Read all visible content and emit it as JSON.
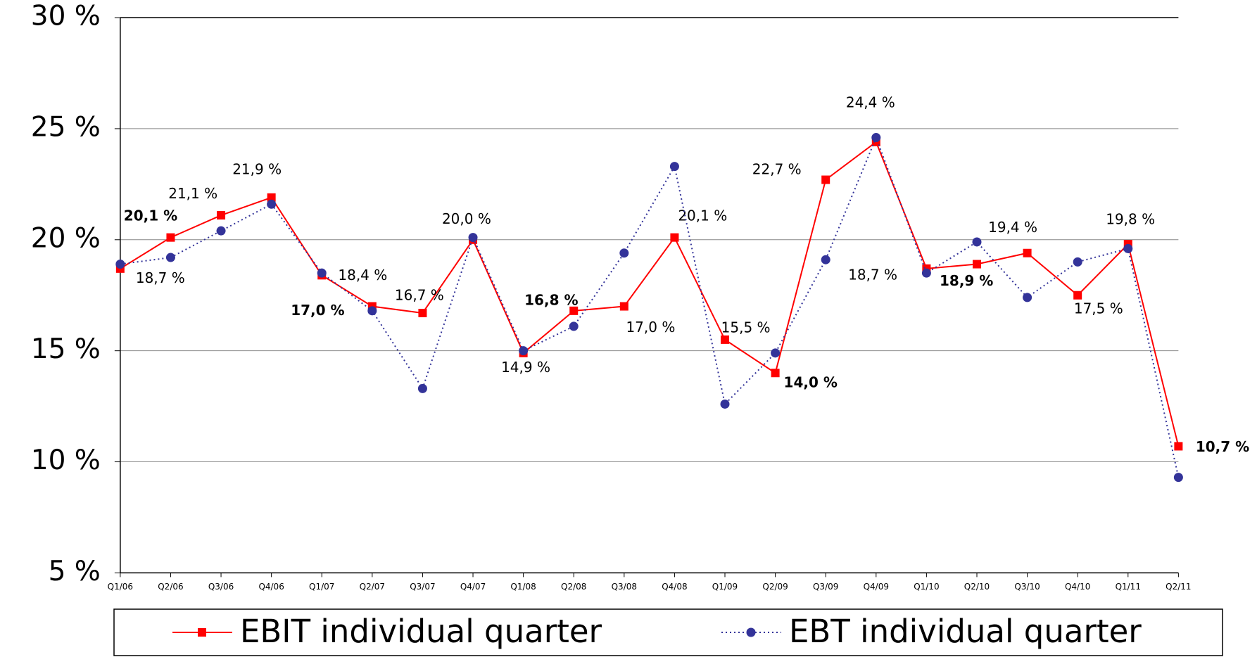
{
  "chart_data": {
    "type": "line",
    "categories": [
      "Q1/06",
      "Q2/06",
      "Q3/06",
      "Q4/06",
      "Q1/07",
      "Q2/07",
      "Q3/07",
      "Q4/07",
      "Q1/08",
      "Q2/08",
      "Q3/08",
      "Q4/08",
      "Q1/09",
      "Q2/09",
      "Q3/09",
      "Q4/09",
      "Q1/10",
      "Q2/10",
      "Q3/10",
      "Q4/10",
      "Q1/11",
      "Q2/11"
    ],
    "series": [
      {
        "name": "EBIT individual quarter",
        "color": "#ff0000",
        "line_style": "solid",
        "marker": "square",
        "values": [
          18.7,
          20.1,
          21.1,
          21.9,
          18.4,
          17.0,
          16.7,
          20.0,
          14.9,
          16.8,
          17.0,
          20.1,
          15.5,
          14.0,
          22.7,
          24.4,
          18.7,
          18.9,
          19.4,
          17.5,
          19.8,
          10.7
        ],
        "value_labels": [
          "18,7 %",
          "20,1 %",
          "21,1 %",
          "21,9 %",
          "18,4 %",
          "17,0 %",
          "16,7 %",
          "20,0 %",
          "14,9 %",
          "16,8 %",
          "17,0 %",
          "20,1 %",
          "15,5 %",
          "14,0 %",
          "22,7 %",
          "24,4 %",
          "18,7 %",
          "18,9 %",
          "19,4 %",
          "17,5 %",
          "19,8 %",
          "10,7 %"
        ],
        "label_bold": [
          false,
          true,
          false,
          false,
          false,
          true,
          false,
          false,
          false,
          true,
          false,
          false,
          false,
          true,
          false,
          false,
          false,
          true,
          false,
          false,
          false,
          true
        ]
      },
      {
        "name": "EBT individual quarter",
        "color": "#333399",
        "line_style": "dotted",
        "marker": "circle",
        "values": [
          18.9,
          19.2,
          20.4,
          21.6,
          18.5,
          16.8,
          13.3,
          20.1,
          15.0,
          16.1,
          19.4,
          23.3,
          12.6,
          14.9,
          19.1,
          24.6,
          18.5,
          19.9,
          17.4,
          19.0,
          19.6,
          9.3
        ]
      }
    ],
    "ylim": [
      5,
      30
    ],
    "yticks": [
      {
        "value": 5,
        "label": "5 %"
      },
      {
        "value": 10,
        "label": "10 %"
      },
      {
        "value": 15,
        "label": "15 %"
      },
      {
        "value": 20,
        "label": "20 %"
      },
      {
        "value": 25,
        "label": "25 %"
      },
      {
        "value": 30,
        "label": "30 %"
      }
    ],
    "grid": true,
    "legend": "bottom"
  }
}
